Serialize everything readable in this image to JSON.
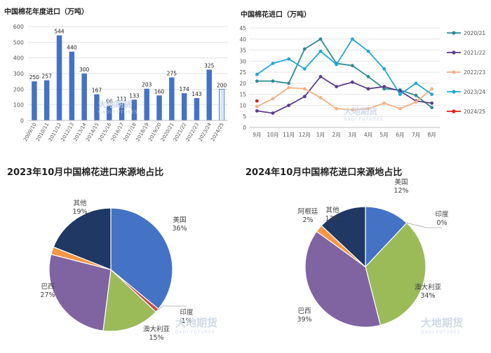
{
  "watermark": {
    "name": "大地期货",
    "sub": "DADI FUTURES"
  },
  "chart_data": [
    {
      "type": "bar",
      "title": "中国棉花年度进口（万吨）",
      "categories": [
        "2009/10",
        "2010/11",
        "2011/12",
        "2012/13",
        "2013/14",
        "2014/15",
        "2015/16",
        "2016/17",
        "2017/18",
        "2018/19",
        "2019/20",
        "2020/21",
        "2021/22",
        "2022/23",
        "2023/24",
        "2024/25"
      ],
      "values": [
        250,
        257,
        544,
        440,
        300,
        167,
        96,
        111,
        133,
        203,
        160,
        275,
        174,
        143,
        325,
        200
      ],
      "ylim": [
        0,
        600
      ],
      "yticks": [
        0,
        100,
        200,
        300,
        400,
        500,
        600
      ],
      "colors": {
        "bar": "#4472c4",
        "last_bar": "#d9e6f5"
      },
      "grid": true
    },
    {
      "type": "line",
      "title": "中国棉花进口（万吨）",
      "x": [
        "9月",
        "10月",
        "11月",
        "12月",
        "1月",
        "2月",
        "3月",
        "4月",
        "5月",
        "6月",
        "7月",
        "8月"
      ],
      "ylim": [
        0,
        45
      ],
      "yticks": [
        0,
        5,
        10,
        15,
        20,
        25,
        30,
        35,
        40,
        45
      ],
      "legend_position": "right",
      "series": [
        {
          "name": "2020/21",
          "color": "#2e8b94",
          "values": [
            21,
            21,
            20,
            35.5,
            40,
            29,
            28,
            23,
            17.5,
            17,
            14.5,
            9
          ]
        },
        {
          "name": "2021/22",
          "color": "#5b3f8c",
          "values": [
            7.5,
            6.5,
            10,
            14,
            23,
            18.5,
            20.5,
            17.5,
            18.5,
            16.5,
            12,
            11
          ]
        },
        {
          "name": "2022/23",
          "color": "#f4b183",
          "values": [
            9.5,
            13,
            18,
            17.5,
            13.5,
            8.5,
            8,
            8.5,
            11,
            8.5,
            11.5,
            17.5
          ]
        },
        {
          "name": "2023/24",
          "color": "#1fa8d8",
          "values": [
            24,
            29,
            31,
            26.5,
            34.5,
            28.5,
            40,
            34.5,
            26.5,
            15,
            20,
            15
          ]
        },
        {
          "name": "2024/25",
          "color": "#e0201b",
          "values": [
            12,
            null,
            null,
            null,
            null,
            null,
            null,
            null,
            null,
            null,
            null,
            null
          ]
        }
      ]
    },
    {
      "type": "pie",
      "title": "2023年10月中国棉花进口来源地占比",
      "slices": [
        {
          "label": "美国",
          "value": 36,
          "display": "36%",
          "color": "#4472c4"
        },
        {
          "label": "印度",
          "value": 1,
          "display": "1%",
          "color": "#c0504d"
        },
        {
          "label": "澳大利亚",
          "value": 15,
          "display": "15%",
          "color": "#9bbb59"
        },
        {
          "label": "巴西",
          "value": 27,
          "display": "27%",
          "color": "#8064a2"
        },
        {
          "label": "",
          "value": 2,
          "display": "",
          "color": "#f79646"
        },
        {
          "label": "其他",
          "value": 19,
          "display": "19%",
          "color": "#1f3864"
        }
      ]
    },
    {
      "type": "pie",
      "title": "2024年10月中国棉花进口来源地占比",
      "slices": [
        {
          "label": "美国",
          "value": 12,
          "display": "12%",
          "color": "#4472c4"
        },
        {
          "label": "印度",
          "value": 0,
          "display": "0%",
          "color": "#c0504d"
        },
        {
          "label": "澳大利亚",
          "value": 34,
          "display": "34%",
          "color": "#9bbb59"
        },
        {
          "label": "巴西",
          "value": 39,
          "display": "39%",
          "color": "#8064a2"
        },
        {
          "label": "阿根廷",
          "value": 2,
          "display": "2%",
          "color": "#f79646"
        },
        {
          "label": "其他",
          "value": 13,
          "display": "13%",
          "color": "#1f3864"
        }
      ]
    }
  ]
}
